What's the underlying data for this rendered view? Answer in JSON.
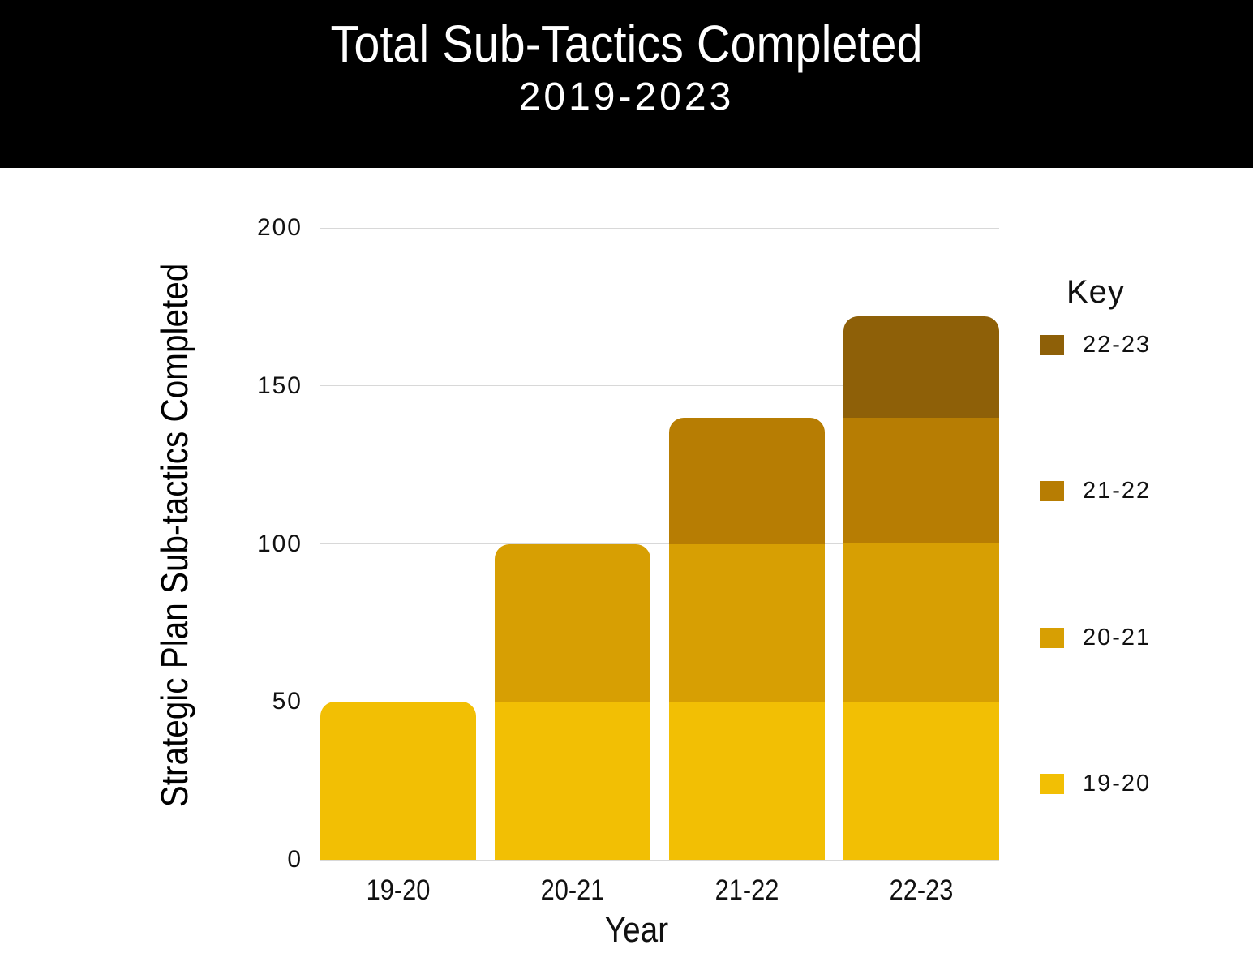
{
  "header": {
    "title": "Total Sub-Tactics Completed",
    "subtitle": "2019-2023"
  },
  "chart_data": {
    "type": "bar",
    "stacked": true,
    "title": "Total Sub-Tactics Completed",
    "subtitle": "2019-2023",
    "xlabel": "Year",
    "ylabel": "Strategic Plan Sub-tactics Completed",
    "categories": [
      "19-20",
      "20-21",
      "21-22",
      "22-23"
    ],
    "series": [
      {
        "name": "19-20",
        "color": "#F2BF04",
        "values": [
          50,
          50,
          50,
          50
        ]
      },
      {
        "name": "20-21",
        "color": "#D79F03",
        "values": [
          0,
          50,
          50,
          50
        ]
      },
      {
        "name": "21-22",
        "color": "#B77D03",
        "values": [
          0,
          0,
          40,
          40
        ]
      },
      {
        "name": "22-23",
        "color": "#8E6008",
        "values": [
          0,
          0,
          0,
          32
        ]
      }
    ],
    "totals": [
      50,
      100,
      140,
      172
    ],
    "ylim": [
      0,
      200
    ],
    "yticks": [
      0,
      50,
      100,
      150,
      200
    ],
    "grid": "horizontal",
    "gridline_color": "#D8D8D8",
    "legend_title": "Key",
    "legend_position": "right",
    "legend_order": [
      "22-23",
      "21-22",
      "20-21",
      "19-20"
    ],
    "background": "#FFFFFF",
    "banner_color": "#000000",
    "banner_text_color": "#FFFFFF"
  }
}
